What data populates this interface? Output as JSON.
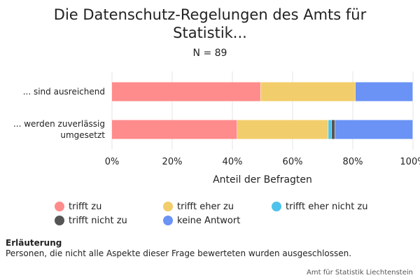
{
  "chart_data": {
    "type": "bar",
    "orientation": "horizontal",
    "stacked": true,
    "title": "Die Datenschutz-Regelungen des Amts für Statistik...",
    "subtitle": "N = 89",
    "xlabel": "Anteil der Befragten",
    "ylabel": "",
    "xlim": [
      0,
      100
    ],
    "x_ticks": [
      "0%",
      "20%",
      "40%",
      "60%",
      "80%",
      "100%"
    ],
    "grid": true,
    "legend_position": "bottom",
    "categories": [
      "... sind ausreichend",
      "... werden zuverlässig umgesetzt"
    ],
    "category_lines": [
      [
        "... sind ausreichend"
      ],
      [
        "... werden zuverlässig",
        "umgesetzt"
      ]
    ],
    "series": [
      {
        "name": "trifft zu",
        "color": "#ff8c8c",
        "values": [
          49.4,
          41.6
        ]
      },
      {
        "name": "trifft eher zu",
        "color": "#f2cd6b",
        "values": [
          31.5,
          30.3
        ]
      },
      {
        "name": "trifft eher nicht zu",
        "color": "#4dc3eb",
        "values": [
          0,
          1.1
        ]
      },
      {
        "name": "trifft nicht zu",
        "color": "#555555",
        "values": [
          0,
          1.1
        ]
      },
      {
        "name": "keine Antwort",
        "color": "#6b93f5",
        "values": [
          19.1,
          25.9
        ]
      }
    ]
  },
  "note": {
    "title": "Erläuterung",
    "text": "Personen, die nicht alle Aspekte dieser Frage bewerteten wurden ausgeschlossen."
  },
  "source": "Amt für Statistik Liechtenstein"
}
